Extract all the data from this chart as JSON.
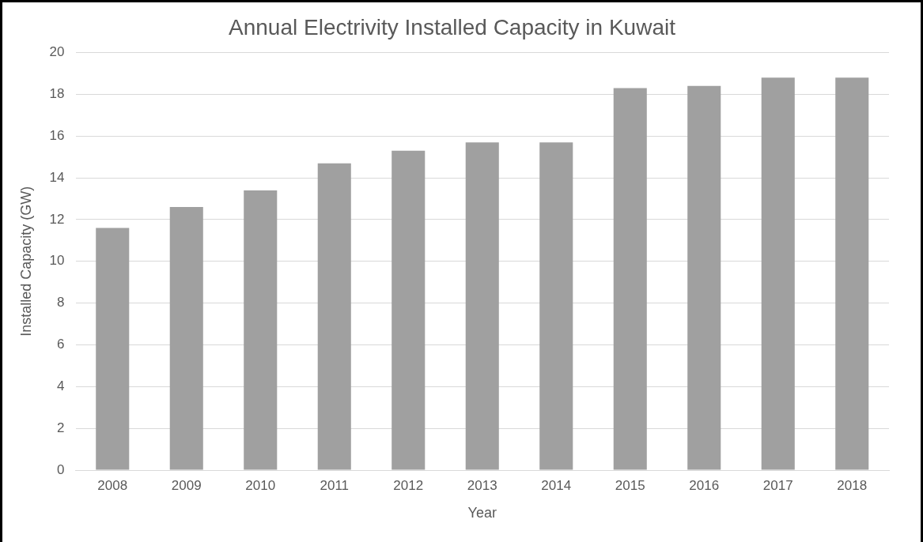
{
  "chart_data": {
    "type": "bar",
    "title": "Annual Electrivity Installed Capacity in Kuwait",
    "xlabel": "Year",
    "ylabel": "Installed Capacity (GW)",
    "categories": [
      "2008",
      "2009",
      "2010",
      "2011",
      "2012",
      "2013",
      "2014",
      "2015",
      "2016",
      "2017",
      "2018"
    ],
    "values": [
      11.6,
      12.6,
      13.4,
      14.7,
      15.3,
      15.7,
      15.7,
      18.3,
      18.4,
      18.8,
      18.8
    ],
    "color": "#a0a0a0",
    "ylim": [
      0,
      20
    ],
    "yticks": [
      0,
      2,
      4,
      6,
      8,
      10,
      12,
      14,
      16,
      18,
      20
    ],
    "grid": "y",
    "legend": false
  }
}
